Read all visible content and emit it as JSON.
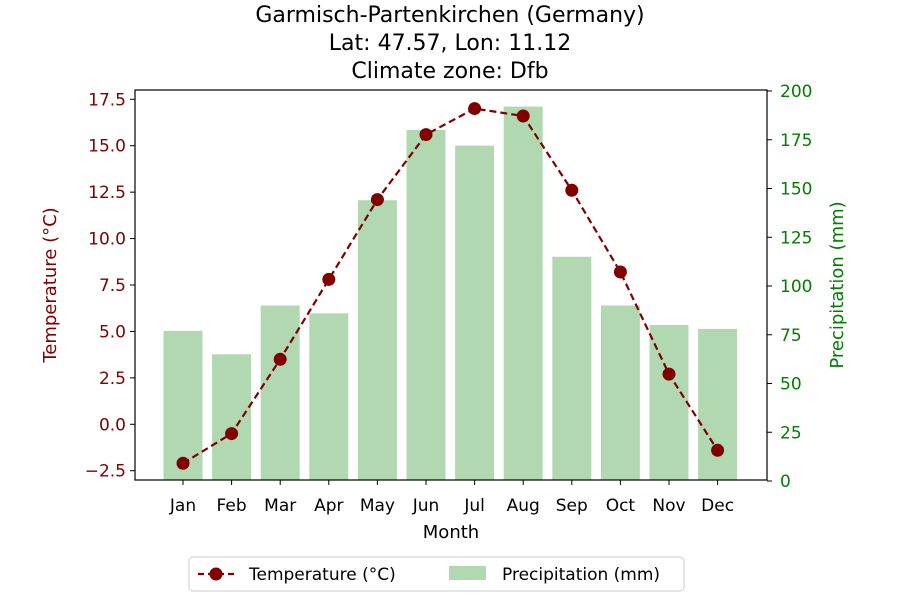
{
  "chart_data": {
    "type": "bar+line",
    "title_lines": [
      "Garmisch-Partenkirchen (Germany)",
      "Lat: 47.57, Lon: 11.12",
      "Climate zone: Dfb"
    ],
    "categories": [
      "Jan",
      "Feb",
      "Mar",
      "Apr",
      "May",
      "Jun",
      "Jul",
      "Aug",
      "Sep",
      "Oct",
      "Nov",
      "Dec"
    ],
    "xlabel": "Month",
    "temperature": {
      "name": "Temperature (°C)",
      "axis_label": "Temperature (°C)",
      "color": "#800000",
      "values": [
        -2.1,
        -0.5,
        3.5,
        7.8,
        12.1,
        15.6,
        17.0,
        16.6,
        12.6,
        8.2,
        2.7,
        -1.4
      ],
      "ylim": [
        -3.0,
        18.0
      ],
      "ticks": [
        -2.5,
        0.0,
        2.5,
        5.0,
        7.5,
        10.0,
        12.5,
        15.0,
        17.5
      ],
      "tick_labels": [
        "−2.5",
        "0.0",
        "2.5",
        "5.0",
        "7.5",
        "10.0",
        "12.5",
        "15.0",
        "17.5"
      ]
    },
    "precipitation": {
      "name": "Precipitation (mm)",
      "axis_label": "Precipitation (mm)",
      "color": "#008000",
      "bar_color": "#b2d8b2",
      "values": [
        77,
        65,
        90,
        86,
        144,
        180,
        172,
        192,
        115,
        90,
        80,
        78
      ],
      "ylim": [
        0,
        200
      ],
      "ticks": [
        0,
        25,
        50,
        75,
        100,
        125,
        150,
        175,
        200
      ],
      "tick_labels": [
        "0",
        "25",
        "50",
        "75",
        "100",
        "125",
        "150",
        "175",
        "200"
      ]
    },
    "legend_position": "bottom-center"
  }
}
